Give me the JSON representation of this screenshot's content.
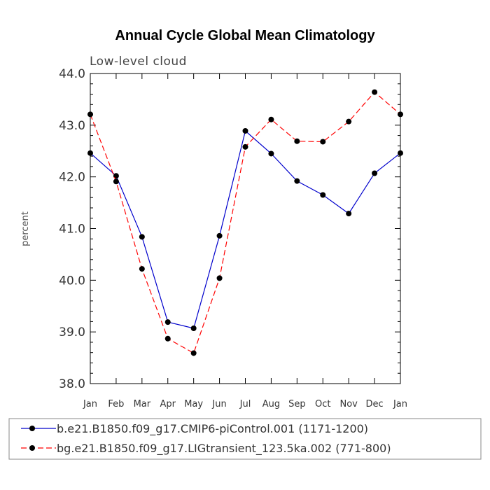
{
  "chart_data": {
    "type": "line",
    "title": "Annual Cycle Global Mean Climatology",
    "subtitle": "Low-level cloud",
    "ylabel": "percent",
    "xlabel": "",
    "ylim": [
      38.0,
      44.0
    ],
    "yticks": [
      "38.0",
      "39.0",
      "40.0",
      "41.0",
      "42.0",
      "43.0",
      "44.0"
    ],
    "categories": [
      "Jan",
      "Feb",
      "Mar",
      "Apr",
      "May",
      "Jun",
      "Jul",
      "Aug",
      "Sep",
      "Oct",
      "Nov",
      "Dec",
      "Jan"
    ],
    "series": [
      {
        "name": "b.e21.B1850.f09_g17.CMIP6-piControl.001 (1171-1200)",
        "color": "#0000cc",
        "dash": "solid",
        "values": [
          42.46,
          42.02,
          40.84,
          39.19,
          39.07,
          40.86,
          42.89,
          42.45,
          41.92,
          41.65,
          41.29,
          42.07,
          42.46
        ]
      },
      {
        "name": "bg.e21.B1850.f09_g17.LIGtransient_123.5ka.002 (771-800)",
        "color": "#ff0000",
        "dash": "dashed",
        "values": [
          43.21,
          41.91,
          40.22,
          38.87,
          38.59,
          40.04,
          42.58,
          43.11,
          42.69,
          42.68,
          43.07,
          43.64,
          43.21
        ]
      }
    ],
    "legend_position": "bottom"
  }
}
